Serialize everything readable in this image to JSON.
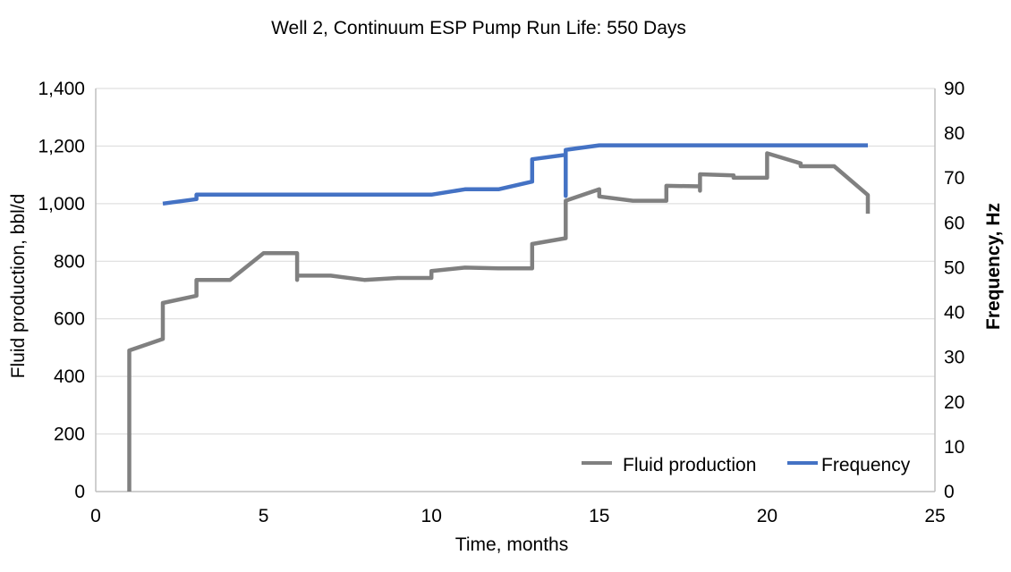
{
  "chart_data": {
    "type": "line",
    "title": "Well 2, Continuum ESP Pump Run Life: 550 Days",
    "xlabel": "Time, months",
    "ylabel": "Fluid production, bbl/d",
    "y2label": "Frequency, Hz",
    "xlim": [
      0,
      25
    ],
    "ylim": [
      0,
      1400
    ],
    "y2lim": [
      0,
      90
    ],
    "xticks": [
      0,
      5,
      10,
      15,
      20,
      25
    ],
    "xtick_labels": [
      "0",
      "5",
      "10",
      "15",
      "20",
      "25"
    ],
    "yticks": [
      0,
      200,
      400,
      600,
      800,
      1000,
      1200,
      1400
    ],
    "ytick_labels": [
      "0",
      "200",
      "400",
      "600",
      "800",
      "1,000",
      "1,200",
      "1,400"
    ],
    "y2ticks": [
      0,
      10,
      20,
      30,
      40,
      50,
      60,
      70,
      80,
      90
    ],
    "y2tick_labels": [
      "0",
      "10",
      "20",
      "30",
      "40",
      "50",
      "60",
      "70",
      "80",
      "90"
    ],
    "grid": "horizontal",
    "legend_position": "bottom-right",
    "series": [
      {
        "name": "Fluid production",
        "axis": "left",
        "color": "#808080",
        "points": [
          [
            1.0,
            0
          ],
          [
            1.0,
            490
          ],
          [
            2.0,
            530
          ],
          [
            2.0,
            655
          ],
          [
            3.0,
            680
          ],
          [
            3.0,
            735
          ],
          [
            4.0,
            735
          ],
          [
            5.0,
            828
          ],
          [
            6.0,
            828
          ],
          [
            6.0,
            735
          ],
          [
            6.0,
            750
          ],
          [
            7.0,
            750
          ],
          [
            8.0,
            735
          ],
          [
            9.0,
            742
          ],
          [
            10.0,
            742
          ],
          [
            10.0,
            766
          ],
          [
            11.0,
            778
          ],
          [
            12.0,
            775
          ],
          [
            13.0,
            775
          ],
          [
            13.0,
            860
          ],
          [
            14.0,
            880
          ],
          [
            14.0,
            1010
          ],
          [
            15.0,
            1050
          ],
          [
            15.0,
            1025
          ],
          [
            16.0,
            1010
          ],
          [
            17.0,
            1010
          ],
          [
            17.0,
            1062
          ],
          [
            18.0,
            1060
          ],
          [
            18.0,
            1045
          ],
          [
            18.0,
            1102
          ],
          [
            19.0,
            1098
          ],
          [
            19.0,
            1090
          ],
          [
            20.0,
            1090
          ],
          [
            20.0,
            1175
          ],
          [
            21.0,
            1140
          ],
          [
            21.0,
            1130
          ],
          [
            22.0,
            1130
          ],
          [
            23.0,
            1030
          ],
          [
            23.0,
            965
          ]
        ]
      },
      {
        "name": "Frequency",
        "axis": "right",
        "color": "#4472C4",
        "points": [
          [
            2.0,
            64.3
          ],
          [
            3.0,
            65.3
          ],
          [
            3.0,
            66.3
          ],
          [
            10.0,
            66.3
          ],
          [
            11.0,
            67.5
          ],
          [
            12.0,
            67.5
          ],
          [
            13.0,
            69.2
          ],
          [
            13.0,
            74.2
          ],
          [
            14.0,
            75.2
          ],
          [
            14.0,
            66.0
          ],
          [
            14.0,
            76.3
          ],
          [
            15.0,
            77.3
          ],
          [
            23.0,
            77.3
          ]
        ]
      }
    ]
  }
}
